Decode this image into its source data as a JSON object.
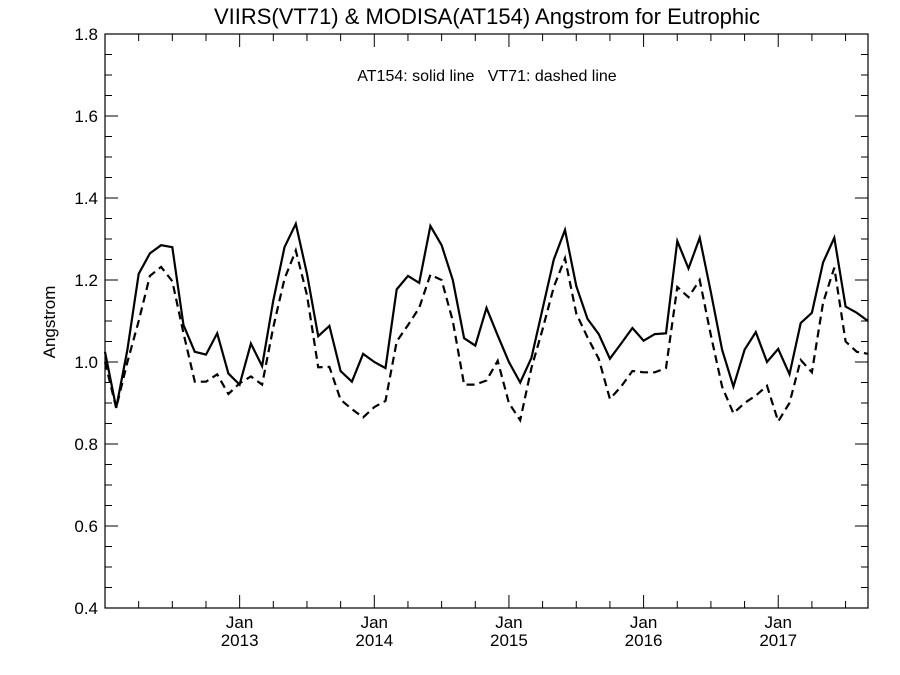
{
  "chart_data": {
    "type": "line",
    "title": "VIIRS(VT71) & MODISA(AT154)  Angstrom for Eutrophic",
    "annotation": "AT154: solid line   VT71: dashed line",
    "ylabel": "Angstrom",
    "xlabel": "",
    "ylim": [
      0.4,
      1.8
    ],
    "xlim": [
      "2012-01",
      "2017-09"
    ],
    "y_ticks": [
      "0.4",
      "0.6",
      "0.8",
      "1.0",
      "1.2",
      "1.4",
      "1.6",
      "1.8"
    ],
    "x_ticks": [
      {
        "month": "Jan",
        "year": "2013",
        "date": "2013-01"
      },
      {
        "month": "Jan",
        "year": "2014",
        "date": "2014-01"
      },
      {
        "month": "Jan",
        "year": "2015",
        "date": "2015-01"
      },
      {
        "month": "Jan",
        "year": "2016",
        "date": "2016-01"
      },
      {
        "month": "Jan",
        "year": "2017",
        "date": "2017-01"
      }
    ],
    "grid": false,
    "x": [
      "2012-01",
      "2012-02",
      "2012-03",
      "2012-04",
      "2012-05",
      "2012-06",
      "2012-07",
      "2012-08",
      "2012-09",
      "2012-10",
      "2012-11",
      "2012-12",
      "2013-01",
      "2013-02",
      "2013-03",
      "2013-04",
      "2013-05",
      "2013-06",
      "2013-07",
      "2013-08",
      "2013-09",
      "2013-10",
      "2013-11",
      "2013-12",
      "2014-01",
      "2014-02",
      "2014-03",
      "2014-04",
      "2014-05",
      "2014-06",
      "2014-07",
      "2014-08",
      "2014-09",
      "2014-10",
      "2014-11",
      "2014-12",
      "2015-01",
      "2015-02",
      "2015-03",
      "2015-04",
      "2015-05",
      "2015-06",
      "2015-07",
      "2015-08",
      "2015-09",
      "2015-10",
      "2015-11",
      "2015-12",
      "2016-01",
      "2016-02",
      "2016-03",
      "2016-04",
      "2016-05",
      "2016-06",
      "2016-07",
      "2016-08",
      "2016-09",
      "2016-10",
      "2016-11",
      "2016-12",
      "2017-01",
      "2017-02",
      "2017-03",
      "2017-04",
      "2017-05",
      "2017-06",
      "2017-07",
      "2017-08",
      "2017-09"
    ],
    "series": [
      {
        "name": "AT154",
        "style": "solid",
        "color": "#000000",
        "values": [
          1.025,
          0.888,
          1.03,
          1.215,
          1.265,
          1.285,
          1.28,
          1.09,
          1.025,
          1.018,
          1.07,
          0.972,
          0.945,
          1.045,
          0.99,
          1.15,
          1.28,
          1.337,
          1.215,
          1.063,
          1.088,
          0.978,
          0.952,
          1.02,
          1.0,
          0.985,
          1.177,
          1.21,
          1.193,
          1.332,
          1.285,
          1.2,
          1.058,
          1.04,
          1.132,
          1.065,
          1.0,
          0.95,
          1.01,
          1.13,
          1.25,
          1.322,
          1.185,
          1.105,
          1.068,
          1.008,
          1.045,
          1.083,
          1.052,
          1.068,
          1.07,
          1.295,
          1.228,
          1.303,
          1.17,
          1.03,
          0.94,
          1.03,
          1.073,
          1.0,
          1.032,
          0.97,
          1.095,
          1.12,
          1.243,
          1.303,
          1.135,
          1.12,
          1.1
        ]
      },
      {
        "name": "VT71",
        "style": "dashed",
        "color": "#000000",
        "values": [
          1.0,
          0.888,
          1.0,
          1.1,
          1.21,
          1.232,
          1.197,
          1.07,
          0.952,
          0.952,
          0.97,
          0.922,
          0.948,
          0.965,
          0.945,
          1.085,
          1.203,
          1.272,
          1.163,
          0.987,
          0.988,
          0.908,
          0.885,
          0.865,
          0.89,
          0.905,
          1.05,
          1.09,
          1.132,
          1.213,
          1.2,
          1.1,
          0.945,
          0.945,
          0.955,
          1.003,
          0.9,
          0.858,
          0.985,
          1.08,
          1.183,
          1.253,
          1.118,
          1.06,
          1.008,
          0.91,
          0.94,
          0.978,
          0.975,
          0.975,
          0.985,
          1.183,
          1.158,
          1.2,
          1.065,
          0.94,
          0.875,
          0.9,
          0.918,
          0.942,
          0.855,
          0.9,
          1.005,
          0.975,
          1.145,
          1.23,
          1.05,
          1.025,
          1.02
        ]
      }
    ]
  }
}
